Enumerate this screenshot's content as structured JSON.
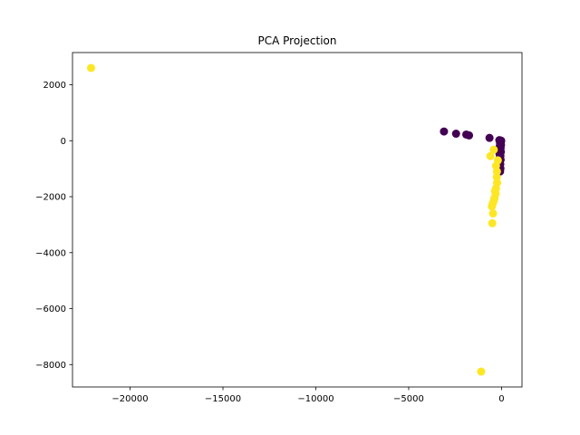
{
  "chart_data": {
    "type": "scatter",
    "title": "PCA Projection",
    "xlabel": "",
    "ylabel": "",
    "xlim": [
      -23100,
      1100
    ],
    "ylim": [
      -8800,
      3150
    ],
    "xticks": [
      -20000,
      -15000,
      -10000,
      -5000,
      0
    ],
    "yticks": [
      -8000,
      -6000,
      -4000,
      -2000,
      0,
      2000
    ],
    "xtick_labels": [
      "−20000",
      "−15000",
      "−10000",
      "−5000",
      "0"
    ],
    "ytick_labels": [
      "−8000",
      "−6000",
      "−4000",
      "−2000",
      "0",
      "2000"
    ],
    "grid": false,
    "series": [
      {
        "color": "#440154",
        "points": [
          [
            -3100,
            330
          ],
          [
            -2450,
            250
          ],
          [
            -1900,
            220
          ],
          [
            -1750,
            190
          ],
          [
            -650,
            100
          ],
          [
            -120,
            20
          ],
          [
            -60,
            10
          ],
          [
            -20,
            0
          ],
          [
            -90,
            -20
          ],
          [
            -40,
            -60
          ],
          [
            -80,
            -100
          ],
          [
            -30,
            -150
          ],
          [
            -100,
            -200
          ],
          [
            -50,
            -260
          ],
          [
            -90,
            -330
          ],
          [
            -40,
            -400
          ],
          [
            -110,
            -470
          ],
          [
            -60,
            -540
          ],
          [
            -100,
            -610
          ],
          [
            -50,
            -680
          ],
          [
            -120,
            -760
          ],
          [
            -70,
            -840
          ],
          [
            -110,
            -920
          ],
          [
            -60,
            -990
          ],
          [
            -120,
            -1060
          ],
          [
            -80,
            -1100
          ]
        ]
      },
      {
        "color": "#fde725",
        "points": [
          [
            -22100,
            2600
          ],
          [
            -1100,
            -8250
          ],
          [
            -600,
            -550
          ],
          [
            -420,
            -320
          ],
          [
            -300,
            -900
          ],
          [
            -260,
            -1300
          ],
          [
            -240,
            -1500
          ],
          [
            -300,
            -1700
          ],
          [
            -320,
            -1900
          ],
          [
            -380,
            -2050
          ],
          [
            -420,
            -2150
          ],
          [
            -480,
            -2250
          ],
          [
            -520,
            -2350
          ],
          [
            -460,
            -2600
          ],
          [
            -500,
            -2950
          ],
          [
            -250,
            -1100
          ],
          [
            -200,
            -700
          ],
          [
            -350,
            -1800
          ]
        ]
      }
    ]
  }
}
